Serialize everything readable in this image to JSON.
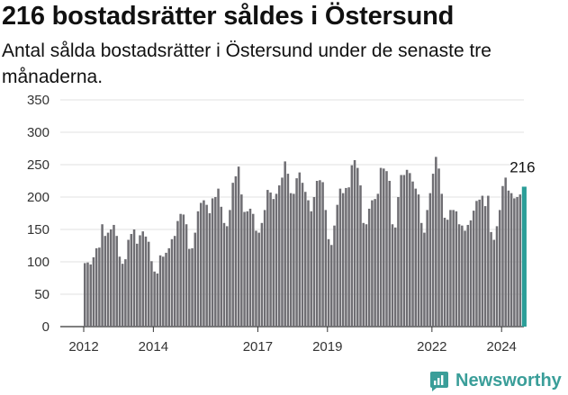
{
  "header": {
    "title": "216 bostadsrätter såldes i Östersund",
    "subtitle": "Antal sålda bostadsrätter i Östersund under de senaste tre månaderna."
  },
  "brand": {
    "name": "Newsworthy",
    "icon": "newsworthy-logo-icon",
    "color": "#3a9e99"
  },
  "colors": {
    "bar": "#6f6e73",
    "highlight": "#2b9e98",
    "grid": "#e0e0e0"
  },
  "chart_data": {
    "type": "bar",
    "title": "216 bostadsrätter såldes i Östersund",
    "subtitle": "Antal sålda bostadsrätter i Östersund under de senaste tre månaderna.",
    "xlabel": "",
    "ylabel": "",
    "ylim": [
      0,
      350
    ],
    "yticks": [
      0,
      50,
      100,
      150,
      200,
      250,
      300,
      350
    ],
    "xticks": [
      "2012",
      "2014",
      "2017",
      "2019",
      "2022",
      "2024"
    ],
    "grid": true,
    "start_month": "2012-01",
    "last_value_label": "216",
    "values": [
      98,
      99,
      96,
      107,
      121,
      122,
      158,
      140,
      145,
      150,
      157,
      140,
      108,
      97,
      104,
      134,
      143,
      150,
      128,
      141,
      147,
      139,
      131,
      101,
      85,
      82,
      110,
      108,
      114,
      121,
      135,
      140,
      163,
      174,
      173,
      158,
      120,
      121,
      145,
      178,
      191,
      195,
      188,
      175,
      198,
      200,
      213,
      185,
      160,
      155,
      180,
      222,
      232,
      247,
      204,
      177,
      178,
      182,
      174,
      148,
      145,
      160,
      180,
      211,
      207,
      197,
      205,
      218,
      230,
      255,
      236,
      206,
      205,
      229,
      238,
      222,
      208,
      195,
      178,
      200,
      225,
      226,
      223,
      180,
      135,
      126,
      156,
      188,
      213,
      206,
      214,
      215,
      249,
      257,
      245,
      218,
      160,
      158,
      182,
      195,
      197,
      205,
      245,
      244,
      240,
      225,
      158,
      153,
      200,
      234,
      234,
      242,
      237,
      224,
      213,
      204,
      160,
      145,
      180,
      206,
      236,
      262,
      244,
      205,
      168,
      165,
      180,
      180,
      178,
      158,
      156,
      148,
      157,
      164,
      179,
      194,
      196,
      202,
      186,
      202,
      146,
      134,
      155,
      180,
      217,
      230,
      210,
      206,
      198,
      200,
      204,
      216
    ],
    "highlight_last": true
  }
}
